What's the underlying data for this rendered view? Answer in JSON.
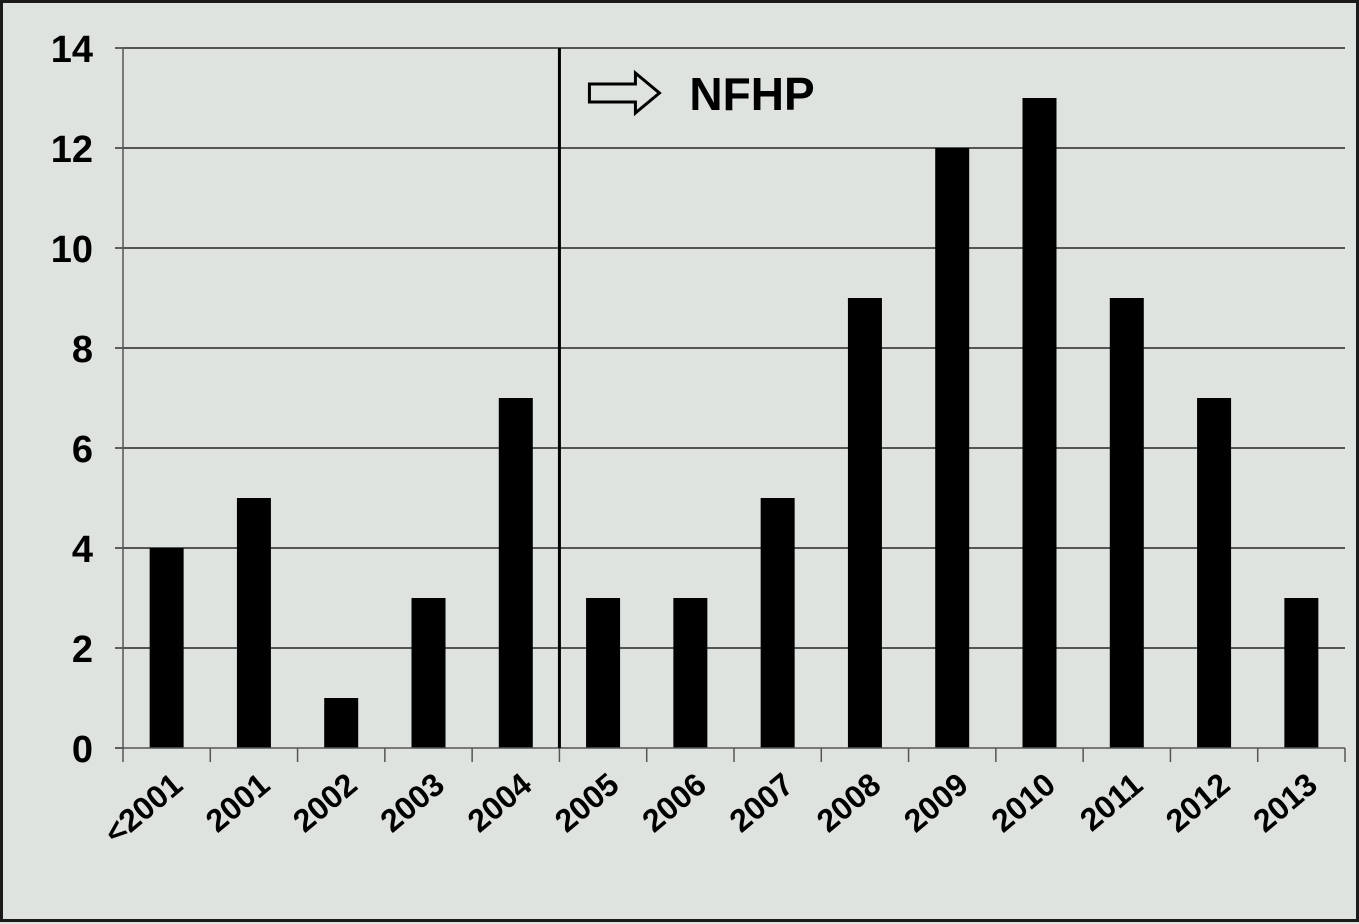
{
  "chart_data": {
    "type": "bar",
    "categories": [
      "<2001",
      "2001",
      "2002",
      "2003",
      "2004",
      "2005",
      "2006",
      "2007",
      "2008",
      "2009",
      "2010",
      "2011",
      "2012",
      "2013"
    ],
    "values": [
      4,
      5,
      1,
      3,
      7,
      3,
      3,
      5,
      9,
      12,
      13,
      9,
      7,
      3
    ],
    "ylim": [
      0,
      14
    ],
    "yticks": [
      0,
      2,
      4,
      6,
      8,
      10,
      12,
      14
    ],
    "grid": true,
    "bar_color": "#000000",
    "background_color": "#dfe3df",
    "annotation": {
      "text": "NFHP",
      "marker_between": [
        "2004",
        "2005"
      ],
      "icon": "right-arrow-outline-icon"
    }
  }
}
